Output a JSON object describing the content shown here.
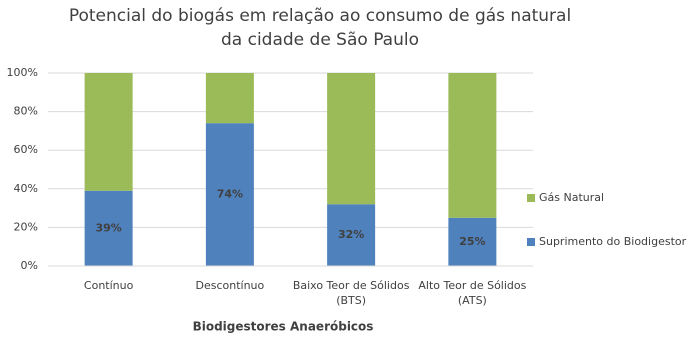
{
  "chart_data": {
    "type": "stacked_bar",
    "title": [
      "Potencial do biogás em relação ao consumo de gás natural",
      "da cidade de São Paulo"
    ],
    "x_label": "Biodigestores Anaeróbicos",
    "categories": [
      "Contínuo",
      "Descontínuo",
      "Baixo Teor de Sólidos (BTS)",
      "Alto Teor de Sólidos (ATS)"
    ],
    "series": [
      {
        "name": "Suprimento do Biodigestor",
        "color": "#4f81bd",
        "values": [
          39,
          74,
          32,
          25
        ],
        "value_labels": [
          "39%",
          "74%",
          "32%",
          "25%"
        ]
      },
      {
        "name": "Gás Natural",
        "color": "#9bbb59",
        "values": [
          61,
          26,
          68,
          75
        ]
      }
    ],
    "ylim": [
      0,
      100
    ],
    "yticks": [
      {
        "value": 0,
        "label": "0%"
      },
      {
        "value": 20,
        "label": "20%"
      },
      {
        "value": 40,
        "label": "40%"
      },
      {
        "value": 60,
        "label": "60%"
      },
      {
        "value": 80,
        "label": "80%"
      },
      {
        "value": 100,
        "label": "100%"
      }
    ],
    "grid": true
  }
}
